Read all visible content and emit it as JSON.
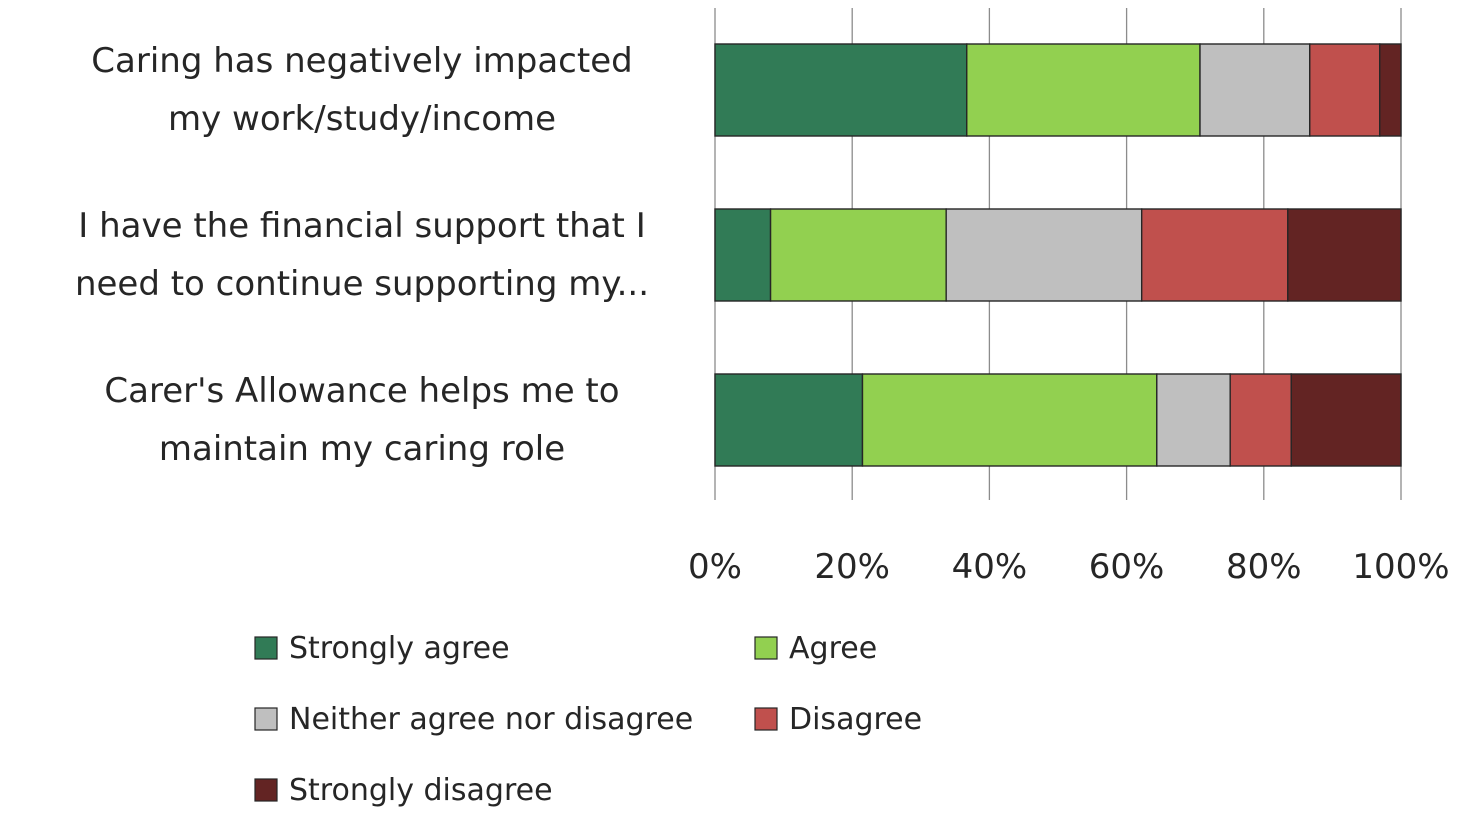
{
  "chart_data": {
    "type": "bar",
    "orientation": "horizontal",
    "stacked": "percent",
    "categories": [
      "Caring has negatively impacted my work/study/income",
      "I have the financial support that I need to continue supporting my...",
      "Carer's Allowance helps me to maintain my caring role"
    ],
    "category_lines": [
      [
        "Caring has negatively impacted",
        "my work/study/income"
      ],
      [
        "I have the financial support that I",
        "need to continue supporting my..."
      ],
      [
        "Carer's Allowance helps me to",
        "maintain my caring role"
      ]
    ],
    "series": [
      {
        "name": "Strongly agree",
        "color": "#317b56",
        "values": [
          36.7,
          8.1,
          21.5
        ]
      },
      {
        "name": "Agree",
        "color": "#92d050",
        "values": [
          34.0,
          25.6,
          42.9
        ]
      },
      {
        "name": "Neither agree nor disagree",
        "color": "#bfbfbf",
        "values": [
          16.0,
          28.5,
          10.7
        ]
      },
      {
        "name": "Disagree",
        "color": "#c0504d",
        "values": [
          10.2,
          21.3,
          8.9
        ]
      },
      {
        "name": "Strongly disagree",
        "color": "#632423",
        "values": [
          3.1,
          16.5,
          16.0
        ]
      }
    ],
    "xlim": [
      0,
      100
    ],
    "x_ticks": [
      "0%",
      "20%",
      "40%",
      "60%",
      "80%",
      "100%"
    ],
    "grid": true,
    "legend_position": "bottom",
    "title": "",
    "xlabel": "",
    "ylabel": ""
  }
}
